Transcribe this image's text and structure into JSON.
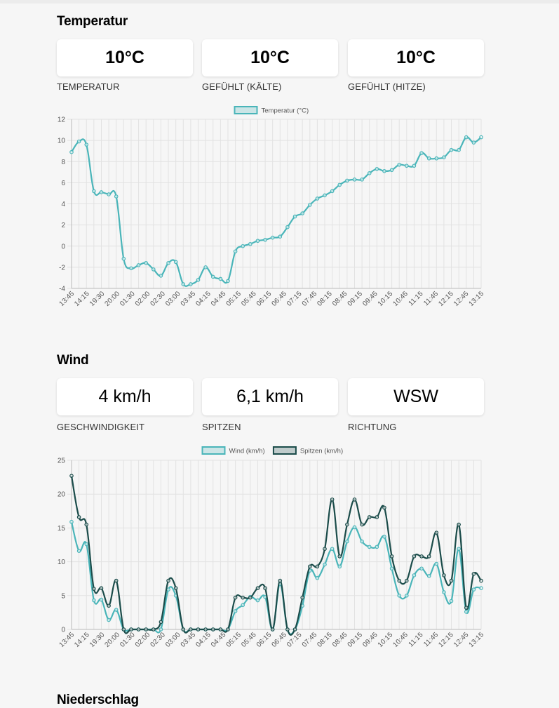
{
  "colors": {
    "temperature": "#4ab5b9",
    "wind": "#4ab5b9",
    "gusts": "#1b4c4a",
    "grid": "#e2e2e2"
  },
  "sections": {
    "temperature": {
      "title": "Temperatur",
      "cards": [
        {
          "value": "10°C",
          "label": "TEMPERATUR"
        },
        {
          "value": "10°C",
          "label": "GEFÜHLT (KÄLTE)"
        },
        {
          "value": "10°C",
          "label": "GEFÜHLT (HITZE)"
        }
      ]
    },
    "wind": {
      "title": "Wind",
      "cards": [
        {
          "value": "4 km/h",
          "label": "GESCHWINDIGKEIT"
        },
        {
          "value": "6,1 km/h",
          "label": "SPITZEN"
        },
        {
          "value": "WSW",
          "label": "RICHTUNG"
        }
      ]
    },
    "precipitation": {
      "title": "Niederschlag"
    }
  },
  "chart_data": [
    {
      "type": "line",
      "ylim": [
        -4,
        12
      ],
      "yticks": [
        12,
        10,
        8,
        6,
        4,
        2,
        0,
        -2,
        -4
      ],
      "x_tick_labels": [
        "13:45",
        "14:15",
        "19:30",
        "20:00",
        "01:30",
        "02:00",
        "02:30",
        "03:00",
        "03:45",
        "04:15",
        "04:45",
        "05:15",
        "05:45",
        "06:15",
        "06:45",
        "07:15",
        "07:45",
        "08:15",
        "08:45",
        "09:15",
        "09:45",
        "10:15",
        "10:45",
        "11:15",
        "11:45",
        "12:15",
        "12:45",
        "13:15"
      ],
      "legend_position": "top",
      "grid": true,
      "series": [
        {
          "name": "Temperatur (°C)",
          "values": [
            8.9,
            9.9,
            9.6,
            5.2,
            5.1,
            4.9,
            4.7,
            -1.2,
            -2.1,
            -1.8,
            -1.6,
            -2.2,
            -2.8,
            -1.6,
            -1.5,
            -3.6,
            -3.6,
            -3.2,
            -2.0,
            -2.9,
            -3.1,
            -3.3,
            -0.5,
            0.0,
            0.2,
            0.5,
            0.6,
            0.8,
            0.9,
            1.8,
            2.8,
            3.1,
            3.9,
            4.5,
            4.8,
            5.2,
            5.8,
            6.2,
            6.3,
            6.3,
            6.9,
            7.3,
            7.1,
            7.2,
            7.7,
            7.6,
            7.6,
            8.8,
            8.3,
            8.3,
            8.4,
            9.1,
            9.1,
            10.3,
            9.8,
            10.3
          ]
        }
      ]
    },
    {
      "type": "line",
      "ylim": [
        0,
        25
      ],
      "yticks": [
        25,
        20,
        15,
        10,
        5,
        0
      ],
      "x_tick_labels": [
        "13:45",
        "14:15",
        "19:30",
        "20:00",
        "01:30",
        "02:00",
        "02:30",
        "03:00",
        "03:45",
        "04:15",
        "04:45",
        "05:15",
        "05:45",
        "06:15",
        "06:45",
        "07:15",
        "07:45",
        "08:15",
        "08:45",
        "09:15",
        "09:45",
        "10:15",
        "10:45",
        "11:15",
        "11:45",
        "12:15",
        "12:45",
        "13:15"
      ],
      "legend_position": "top",
      "grid": true,
      "series": [
        {
          "name": "Wind (km/h)",
          "values": [
            15.9,
            11.6,
            12.6,
            4.3,
            4.4,
            1.4,
            2.9,
            0,
            0,
            0,
            0,
            0,
            0,
            5.9,
            5.0,
            0,
            0,
            0,
            0,
            0,
            0,
            0,
            2.7,
            3.6,
            4.8,
            4.3,
            4.8,
            0,
            6.7,
            0,
            0,
            3.5,
            8.7,
            7.6,
            9.6,
            11.9,
            9.3,
            13.0,
            15.1,
            13.0,
            12.2,
            12.2,
            13.7,
            9.0,
            5.0,
            5.0,
            8.0,
            9.0,
            7.9,
            9.7,
            5.5,
            4.2,
            11.9,
            2.6,
            5.9,
            6.1
          ]
        },
        {
          "name": "Spitzen (km/h)",
          "values": [
            22.7,
            16.6,
            15.5,
            6.0,
            6.1,
            3.5,
            7.2,
            0,
            0,
            0,
            0,
            0,
            1.1,
            7.2,
            6.1,
            0,
            0,
            0,
            0,
            0,
            0,
            0,
            4.7,
            4.7,
            4.7,
            6.1,
            6.1,
            0,
            7.2,
            0,
            0,
            4.7,
            9.3,
            9.3,
            11.9,
            19.2,
            10.8,
            15.5,
            19.2,
            15.5,
            16.6,
            16.6,
            18.0,
            10.8,
            7.2,
            7.2,
            10.8,
            10.8,
            10.8,
            14.3,
            8.0,
            7.2,
            15.5,
            3.2,
            8.2,
            7.2
          ]
        }
      ]
    }
  ]
}
